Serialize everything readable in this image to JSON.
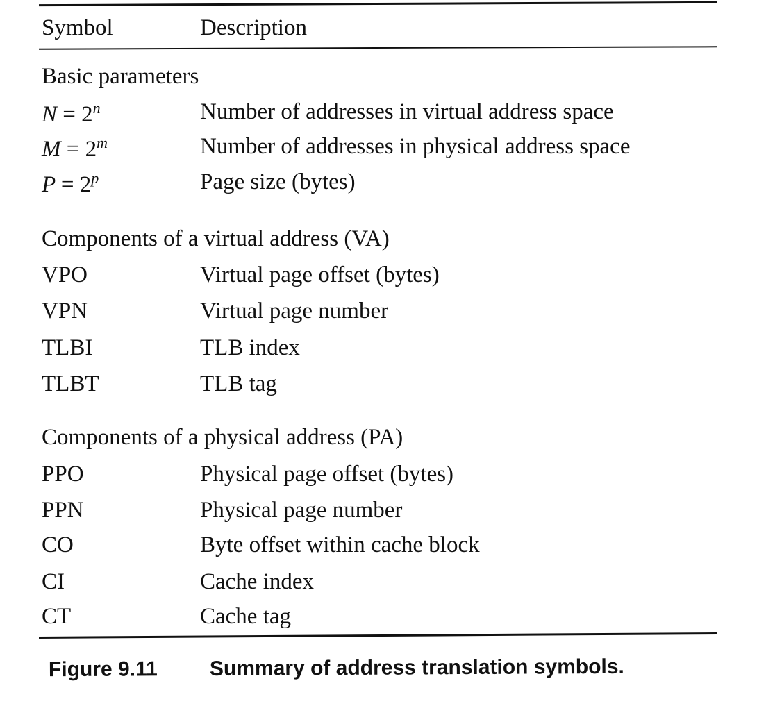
{
  "header": {
    "symbol_label": "Symbol",
    "description_label": "Description"
  },
  "sections": [
    {
      "title": "Basic parameters",
      "rows": [
        {
          "sym_base": "N",
          "sym_exp": "n",
          "description": "Number of addresses in virtual address space"
        },
        {
          "sym_base": "M",
          "sym_exp": "m",
          "description": "Number of addresses in physical address space"
        },
        {
          "sym_base": "P",
          "sym_exp": "p",
          "description": "Page size (bytes)"
        }
      ]
    },
    {
      "title": "Components of a virtual address (VA)",
      "rows": [
        {
          "symbol": "VPO",
          "description": "Virtual page offset (bytes)"
        },
        {
          "symbol": "VPN",
          "description": "Virtual page number"
        },
        {
          "symbol": "TLBI",
          "description": "TLB index"
        },
        {
          "symbol": "TLBT",
          "description": "TLB tag"
        }
      ]
    },
    {
      "title": "Components of a physical address (PA)",
      "rows": [
        {
          "symbol": "PPO",
          "description": "Physical page offset (bytes)"
        },
        {
          "symbol": "PPN",
          "description": "Physical page number"
        },
        {
          "symbol": "CO",
          "description": "Byte offset within cache block"
        },
        {
          "symbol": "CI",
          "description": "Cache index"
        },
        {
          "symbol": "CT",
          "description": "Cache tag"
        }
      ]
    }
  ],
  "caption": {
    "label": "Figure 9.11",
    "text": "Summary of address translation symbols."
  }
}
